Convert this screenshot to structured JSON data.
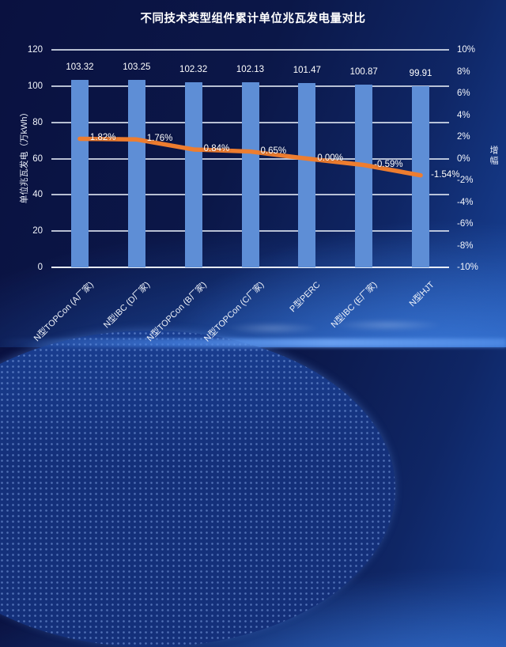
{
  "title": "不同技术类型组件累计单位兆瓦发电量对比",
  "colors": {
    "bar": "#5e8ed6",
    "line": "#ee7d2f",
    "grid": "rgba(222,229,241,0.82)",
    "text": "#ffffff",
    "background_top": "#0a1140",
    "background_bottom": "#2b6bd0"
  },
  "chart_data": {
    "type": "combo-bar-line",
    "title": "不同技术类型组件累计单位兆瓦发电量对比",
    "categories": [
      "N型TOPCon (A厂家)",
      "N型IBC (D厂家)",
      "N型TOPCon (B厂家)",
      "N型TOPCon (C厂家)",
      "P型PERC",
      "N型IBC (E厂家)",
      "N型HJT"
    ],
    "series": [
      {
        "name": "单位兆瓦发电",
        "chart": "bar",
        "axis": "left",
        "values": [
          103.32,
          103.25,
          102.32,
          102.13,
          101.47,
          100.87,
          99.91
        ],
        "labels": [
          "103.32",
          "103.25",
          "102.32",
          "102.13",
          "101.47",
          "100.87",
          "99.91"
        ]
      },
      {
        "name": "增幅",
        "chart": "line",
        "axis": "right",
        "values": [
          1.82,
          1.76,
          0.84,
          0.65,
          0.0,
          -0.59,
          -1.54
        ],
        "labels": [
          "1.82%",
          "1.76%",
          "0.84%",
          "0.65%",
          "0.00%",
          "-0.59%",
          "-1.54%"
        ]
      }
    ],
    "left_axis": {
      "title": "单位兆瓦发电（万kWh）",
      "min": 0,
      "max": 120,
      "ticks": [
        "120",
        "100",
        "80",
        "60",
        "40",
        "20",
        "0"
      ]
    },
    "right_axis": {
      "title": "增幅",
      "min": -10,
      "max": 10,
      "ticks": [
        "10%",
        "8%",
        "6%",
        "4%",
        "2%",
        "0%",
        "-2%",
        "-4%",
        "-6%",
        "-8%",
        "-10%"
      ]
    },
    "grid": true,
    "legend": "none"
  }
}
